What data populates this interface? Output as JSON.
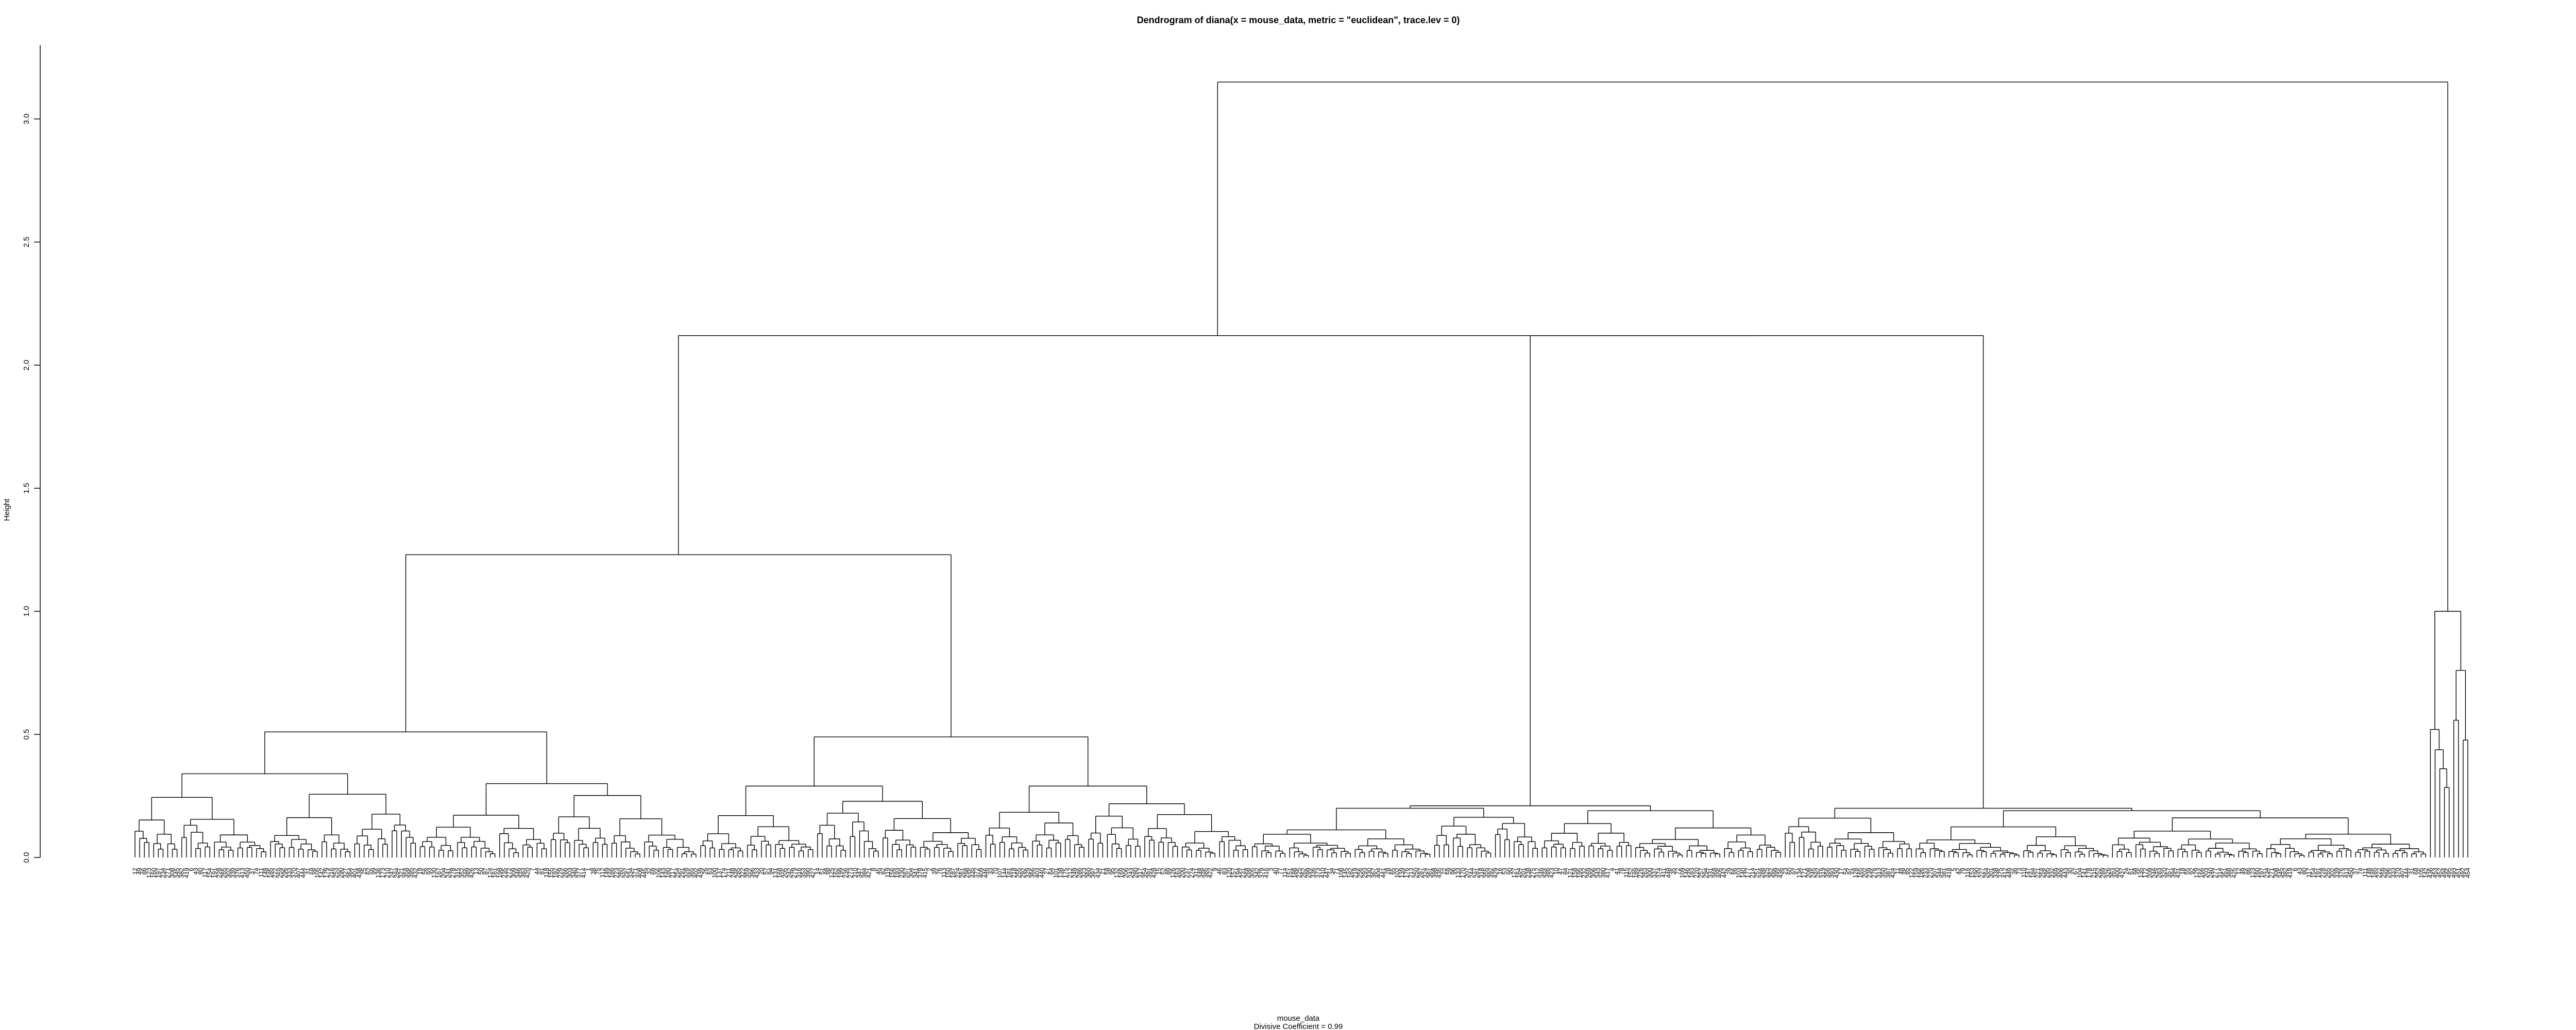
{
  "chart_data": {
    "type": "dendrogram",
    "title": "Dendrogram of  diana(x = mouse_data, metric = \"euclidean\", trace.lev = 0)",
    "ylabel": "Height",
    "xlabel": "mouse_data",
    "subtitle": "Divisive Coefficient =  0.99",
    "ylim": [
      0,
      3.3
    ],
    "y_ticks": [
      "0.0",
      "0.5",
      "1.0",
      "1.5",
      "2.0",
      "2.5",
      "3.0"
    ],
    "y_tick_values": [
      0,
      0.5,
      1.0,
      1.5,
      2.0,
      2.5,
      3.0
    ],
    "n_leaves": 500,
    "outlier_leaf_labels": [
      "436",
      "453",
      "452",
      "494",
      "495",
      "493",
      "451",
      "492",
      "454"
    ],
    "merges": [
      {
        "height": 3.15,
        "joins": [
          "main cluster",
          "outlier cluster (leaves 451–495)"
        ]
      },
      {
        "height": 2.12,
        "joins": [
          "left cluster",
          "right cluster"
        ]
      },
      {
        "height": 1.23,
        "joins": [
          "left-most subcluster",
          "middle subcluster"
        ]
      },
      {
        "height": 1.0,
        "joins": [
          "outlier group A",
          "outlier group B"
        ]
      },
      {
        "height": 0.51,
        "joins": [
          "left-most group 1",
          "left-most group 2"
        ]
      },
      {
        "height": 0.49,
        "joins": [
          "middle group 1",
          "middle group 2"
        ]
      },
      {
        "height": 0.2,
        "joins": [
          "right cluster group 1",
          "right cluster group 2"
        ]
      },
      {
        "height": 0.21,
        "joins": [
          "middle-right group 1",
          "middle-right group 2"
        ]
      }
    ]
  }
}
